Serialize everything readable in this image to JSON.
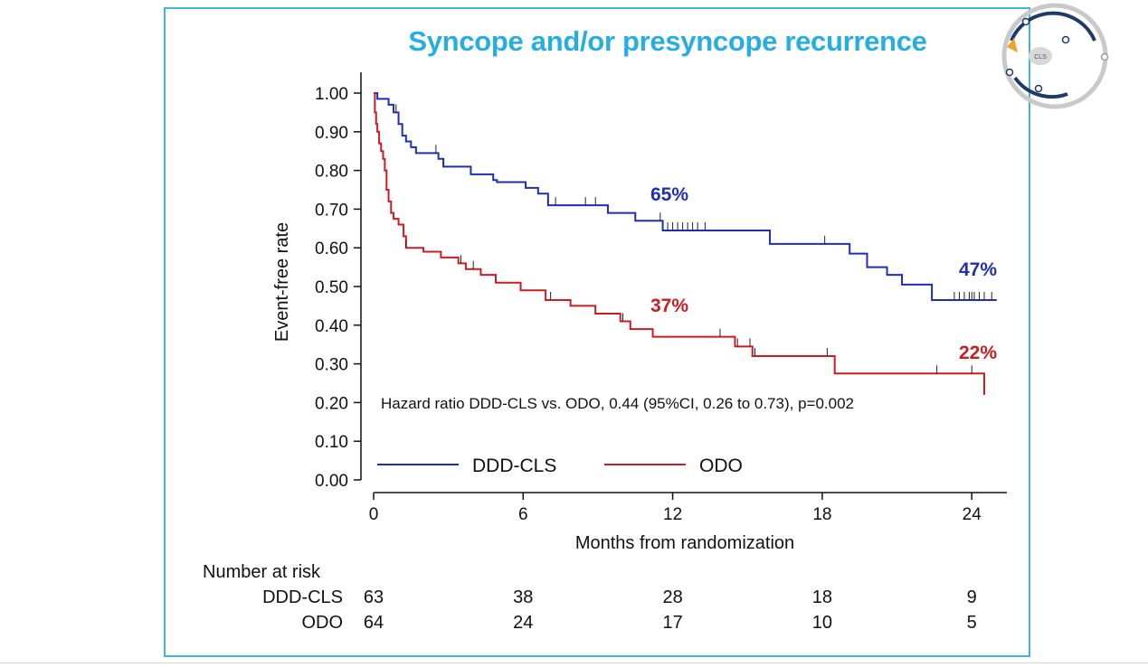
{
  "slide": {
    "title": "Syncope and/or presyncope recurrence",
    "logo_label": "CLS"
  },
  "chart_data": {
    "type": "line",
    "subtype": "kaplan-meier",
    "xlabel": "Months from randomization",
    "ylabel": "Event-free rate",
    "xlim": [
      0,
      25
    ],
    "ylim": [
      0,
      1
    ],
    "x_ticks": [
      0,
      6,
      12,
      18,
      24
    ],
    "x_tick_labels": [
      "0",
      "6",
      "12",
      "18",
      "24"
    ],
    "y_ticks": [
      0,
      0.1,
      0.2,
      0.3,
      0.4,
      0.5,
      0.6,
      0.7,
      0.8,
      0.9,
      1.0
    ],
    "y_tick_labels": [
      "0.00",
      "0.10",
      "0.20",
      "0.30",
      "0.40",
      "0.50",
      "0.60",
      "0.70",
      "0.80",
      "0.90",
      "1.00"
    ],
    "grid": false,
    "legend_placement": "bottom-left",
    "annotation": "Hazard ratio DDD-CLS vs. ODO, 0.44 (95%CI, 0.26 to 0.73), p=0.002",
    "series": [
      {
        "name": "DDD-CLS",
        "color": "#1f2fb5",
        "steps": [
          [
            0,
            1.0
          ],
          [
            0.15,
            0.985
          ],
          [
            0.6,
            0.97
          ],
          [
            0.8,
            0.95
          ],
          [
            1.0,
            0.92
          ],
          [
            1.15,
            0.89
          ],
          [
            1.3,
            0.875
          ],
          [
            1.5,
            0.86
          ],
          [
            1.7,
            0.845
          ],
          [
            2.6,
            0.83
          ],
          [
            2.8,
            0.81
          ],
          [
            3.9,
            0.79
          ],
          [
            4.8,
            0.775
          ],
          [
            4.95,
            0.77
          ],
          [
            6.1,
            0.755
          ],
          [
            6.6,
            0.74
          ],
          [
            7.0,
            0.71
          ],
          [
            8.3,
            0.71
          ],
          [
            9.4,
            0.69
          ],
          [
            10.5,
            0.67
          ],
          [
            11.6,
            0.645
          ],
          [
            13.3,
            0.645
          ],
          [
            15.9,
            0.61
          ],
          [
            18.1,
            0.61
          ],
          [
            19.1,
            0.585
          ],
          [
            19.8,
            0.55
          ],
          [
            20.6,
            0.53
          ],
          [
            21.2,
            0.505
          ],
          [
            22.4,
            0.465
          ],
          [
            25.0,
            0.465
          ]
        ],
        "end_label": "47%",
        "label_12m": "65%",
        "censor_times": [
          0.9,
          2.5,
          2.8,
          7.0,
          7.3,
          8.5,
          8.9,
          11.5,
          11.8,
          12.0,
          12.2,
          12.4,
          12.6,
          12.8,
          13.0,
          13.3,
          18.1,
          23.3,
          23.5,
          23.7,
          23.9,
          24.0,
          24.1,
          24.3,
          24.5,
          24.8
        ]
      },
      {
        "name": "ODO",
        "color": "#c81d25",
        "steps": [
          [
            0,
            1.0
          ],
          [
            0.05,
            0.95
          ],
          [
            0.1,
            0.92
          ],
          [
            0.15,
            0.9
          ],
          [
            0.22,
            0.87
          ],
          [
            0.3,
            0.85
          ],
          [
            0.38,
            0.83
          ],
          [
            0.45,
            0.8
          ],
          [
            0.52,
            0.75
          ],
          [
            0.6,
            0.72
          ],
          [
            0.7,
            0.69
          ],
          [
            0.8,
            0.675
          ],
          [
            1.0,
            0.66
          ],
          [
            1.2,
            0.63
          ],
          [
            1.3,
            0.6
          ],
          [
            2.0,
            0.59
          ],
          [
            2.7,
            0.575
          ],
          [
            3.4,
            0.56
          ],
          [
            3.7,
            0.545
          ],
          [
            4.3,
            0.53
          ],
          [
            4.9,
            0.51
          ],
          [
            5.9,
            0.49
          ],
          [
            6.9,
            0.465
          ],
          [
            7.9,
            0.45
          ],
          [
            8.9,
            0.43
          ],
          [
            9.9,
            0.41
          ],
          [
            10.3,
            0.39
          ],
          [
            11.2,
            0.37
          ],
          [
            13.3,
            0.37
          ],
          [
            14.5,
            0.345
          ],
          [
            15.2,
            0.32
          ],
          [
            18.3,
            0.32
          ],
          [
            18.5,
            0.275
          ],
          [
            24.5,
            0.275
          ],
          [
            24.5,
            0.22
          ]
        ],
        "end_label": "22%",
        "label_12m": "37%",
        "censor_times": [
          1.3,
          3.5,
          4.0,
          7.1,
          10.0,
          13.9,
          14.6,
          15.1,
          15.3,
          18.2,
          22.6,
          24.0
        ]
      }
    ],
    "number_at_risk": {
      "title": "Number at risk",
      "times": [
        0,
        6,
        12,
        18,
        24
      ],
      "rows": [
        {
          "name": "DDD-CLS",
          "values": [
            "63",
            "38",
            "28",
            "18",
            "9"
          ]
        },
        {
          "name": "ODO",
          "values": [
            "64",
            "24",
            "17",
            "10",
            "5"
          ]
        }
      ]
    }
  }
}
